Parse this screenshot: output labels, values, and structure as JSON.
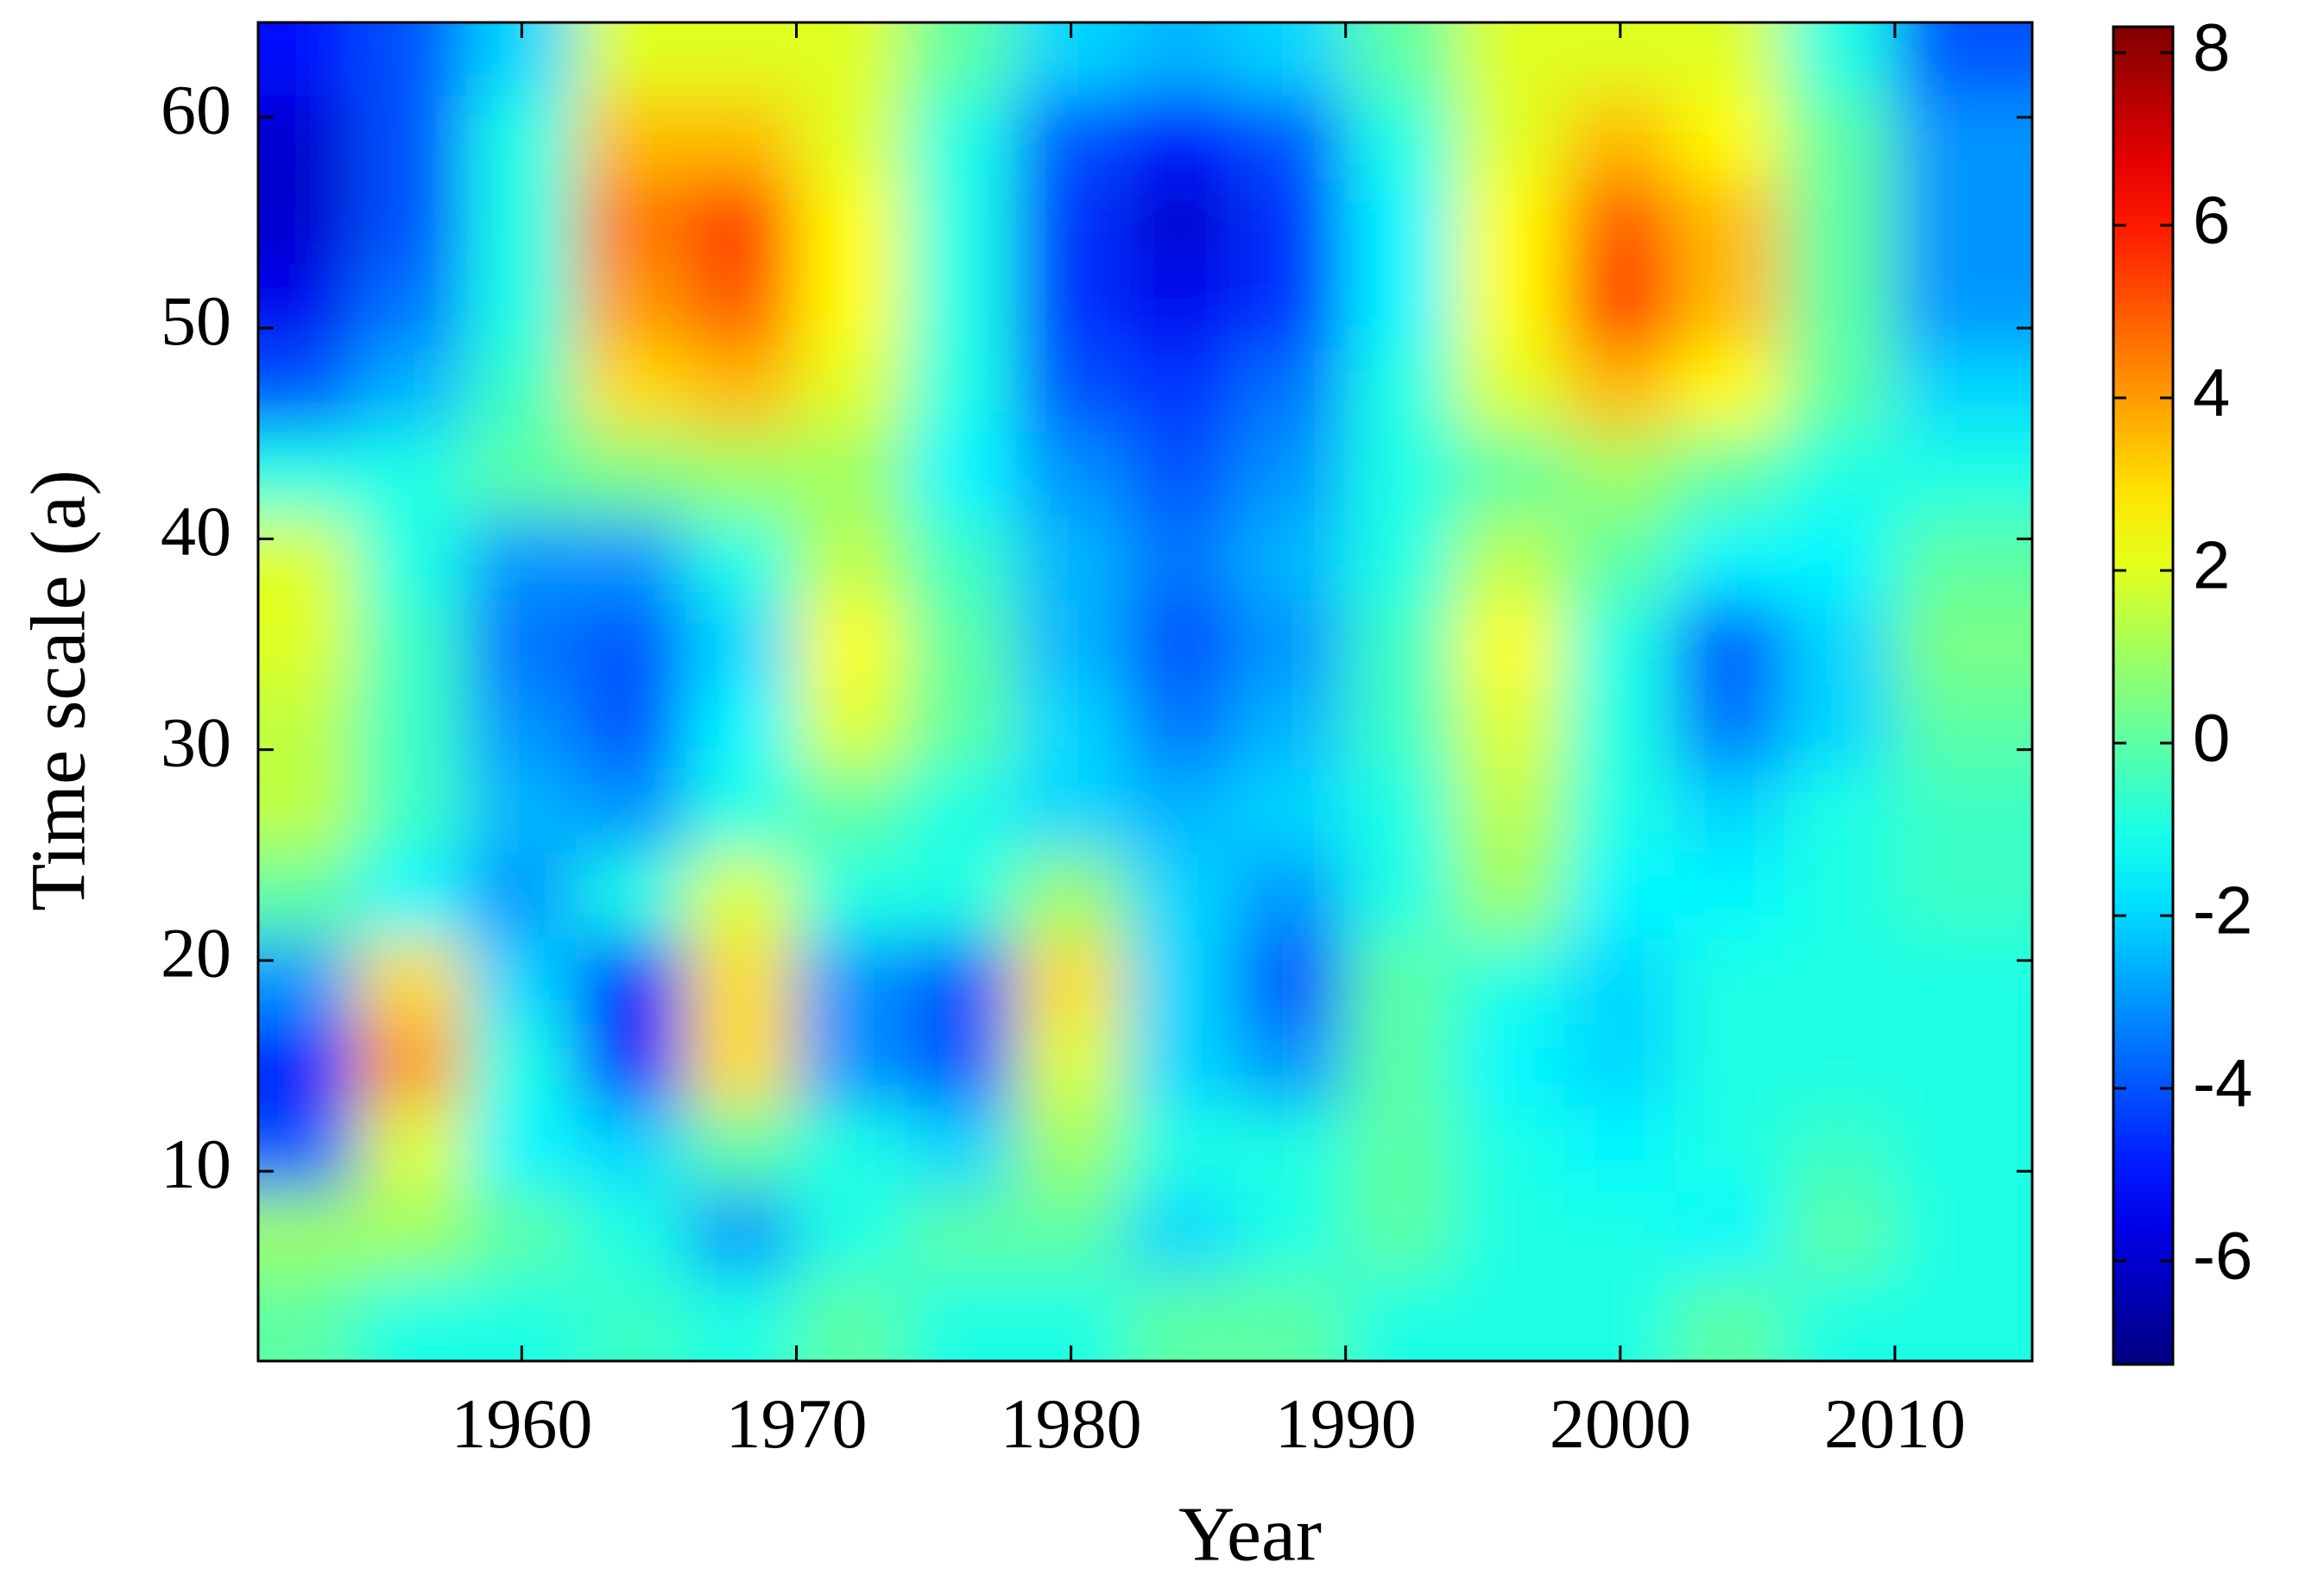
{
  "chart_data": {
    "type": "heatmap",
    "xlabel": "Year",
    "ylabel": "Time scale (a)",
    "x": [
      1952,
      1956,
      1960,
      1964,
      1968,
      1972,
      1976,
      1980,
      1984,
      1988,
      1992,
      1996,
      2000,
      2004,
      2008,
      2012
    ],
    "y": [
      63,
      59,
      55,
      51,
      47,
      43,
      39,
      35,
      31,
      27,
      23,
      19,
      15,
      11,
      7,
      3
    ],
    "z": [
      [
        -5,
        -4,
        -2,
        2,
        2,
        2,
        0,
        -2,
        -2.5,
        -2,
        0,
        2,
        2,
        2,
        -1,
        -4
      ],
      [
        -6,
        -4,
        -1,
        3.5,
        3.5,
        2,
        -1,
        -4,
        -5,
        -4,
        -1,
        2,
        3.5,
        2.5,
        0,
        -3
      ],
      [
        -6,
        -4,
        -1,
        4.5,
        5.5,
        2.5,
        -1,
        -4.5,
        -6,
        -4.5,
        -1.5,
        2.5,
        5,
        3.5,
        0,
        -3
      ],
      [
        -5.5,
        -3.5,
        -1,
        4,
        5,
        2.5,
        -1,
        -4.5,
        -5.5,
        -4.5,
        -1.5,
        2.5,
        5.5,
        3.5,
        0,
        -3
      ],
      [
        -4,
        -2.5,
        -0.5,
        3,
        3.5,
        2,
        -1,
        -4,
        -4.5,
        -3.5,
        -1,
        2,
        3.5,
        2.5,
        0,
        -2
      ],
      [
        -1,
        -1,
        0,
        0.5,
        1,
        1,
        -1.5,
        -3,
        -4,
        -3,
        -1,
        0,
        1,
        0,
        -1,
        -1
      ],
      [
        2,
        -1,
        -3,
        -3,
        -1,
        1.5,
        -0.5,
        -2.5,
        -3.5,
        -2.5,
        -1,
        1.5,
        0,
        -1.5,
        -1.5,
        0
      ],
      [
        2,
        -0.5,
        -3.5,
        -4,
        -2,
        2.5,
        0,
        -2.5,
        -4,
        -3,
        -0.5,
        2.5,
        -1,
        -4,
        -2,
        0.5
      ],
      [
        1.5,
        -0.5,
        -3,
        -4,
        -1.5,
        2,
        0,
        -2,
        -3.5,
        -2.5,
        -0.5,
        2,
        -1,
        -3.5,
        -2,
        0
      ],
      [
        1.5,
        -0.5,
        -2.5,
        -3,
        -1,
        0,
        -1,
        -2,
        -2.5,
        -2,
        -1,
        1.5,
        -1,
        -2,
        -1,
        -0.5
      ],
      [
        0,
        -1.5,
        -3,
        -1,
        2,
        -1,
        -1,
        1,
        -2,
        -3,
        -1,
        1,
        -1.5,
        -1.5,
        -1,
        -0.5
      ],
      [
        -3,
        3,
        -2,
        -5,
        3,
        -3,
        -4,
        3,
        -2,
        -4,
        0,
        -1,
        -2,
        -1,
        -1,
        -1
      ],
      [
        -5,
        4,
        -1,
        -5,
        3,
        -3,
        -4,
        2,
        -2,
        -3,
        0,
        -1.5,
        -2,
        -1,
        -1,
        -1
      ],
      [
        -4,
        2,
        -1.5,
        -2,
        0,
        -1,
        -2,
        1,
        -1,
        -1,
        0,
        -1,
        -1.5,
        -1,
        -0.5,
        -1
      ],
      [
        1,
        1,
        0,
        -1,
        -3,
        -1,
        0,
        0,
        -2,
        -1,
        0,
        -1,
        -1,
        -1.5,
        0,
        -1
      ],
      [
        0,
        -1,
        -1,
        -0.5,
        -1,
        0,
        -1,
        -1,
        0,
        0,
        -1,
        -1,
        -1,
        0,
        -1,
        -1
      ]
    ],
    "xlim": [
      1950.4,
      2015
    ],
    "ylim": [
      1,
      64.5
    ],
    "xticks": [
      1960,
      1970,
      1980,
      1990,
      2000,
      2010
    ],
    "yticks": [
      10,
      20,
      30,
      40,
      50,
      60
    ],
    "clim": [
      -7.2,
      8.3
    ],
    "cticks": [
      -6,
      -4,
      -2,
      0,
      2,
      4,
      6,
      8
    ],
    "colormap": "jet"
  }
}
